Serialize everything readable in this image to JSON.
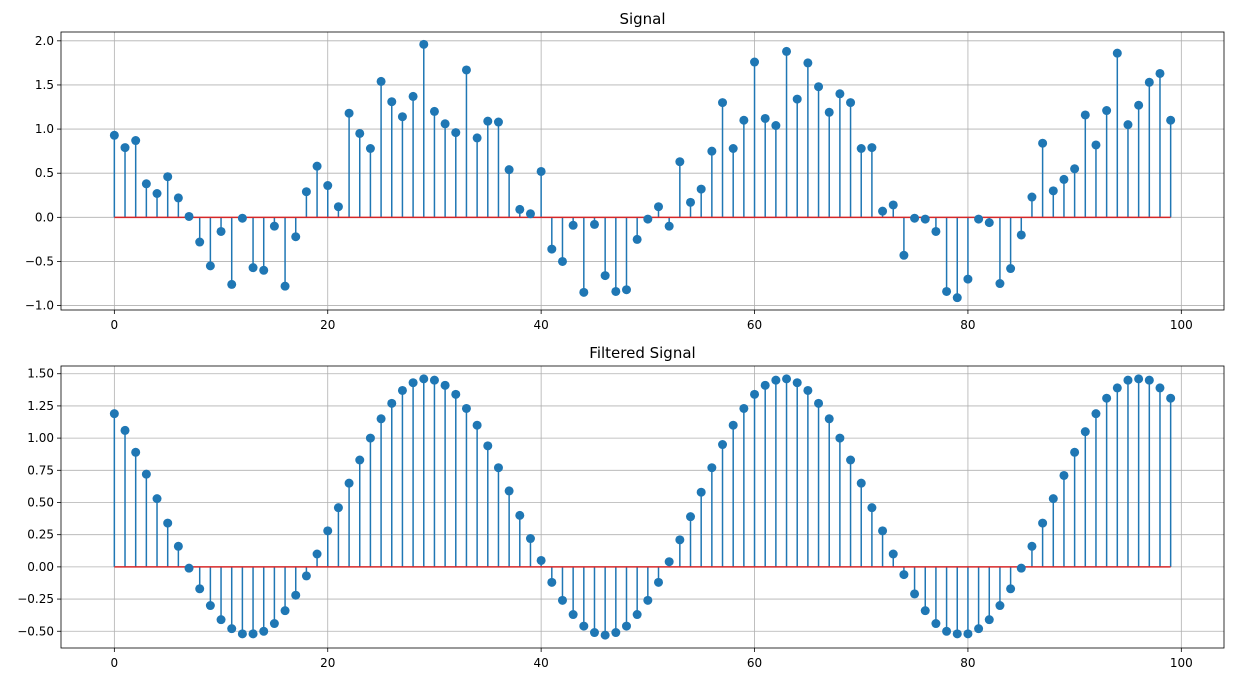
{
  "chart_data": [
    {
      "type": "stem",
      "title": "Signal",
      "xlabel": "",
      "ylabel": "",
      "xlim": [
        -5,
        104
      ],
      "ylim": [
        -1.05,
        2.1
      ],
      "xticks": [
        0,
        20,
        40,
        60,
        80,
        100
      ],
      "yticks": [
        -1.0,
        -0.5,
        0.0,
        0.5,
        1.0,
        1.5,
        2.0
      ],
      "ytick_labels": [
        "−1.0",
        "−0.5",
        "0.0",
        "0.5",
        "1.0",
        "1.5",
        "2.0"
      ],
      "grid": true,
      "baseline": 0,
      "x_start": 0,
      "x_step": 1,
      "values": [
        0.93,
        0.79,
        0.87,
        0.38,
        0.27,
        0.46,
        0.22,
        0.01,
        -0.28,
        -0.55,
        -0.16,
        -0.76,
        -0.01,
        -0.57,
        -0.6,
        -0.1,
        -0.78,
        -0.22,
        0.29,
        0.58,
        0.36,
        0.12,
        1.18,
        0.95,
        0.78,
        1.54,
        1.31,
        1.14,
        1.37,
        1.96,
        1.2,
        1.06,
        0.96,
        1.67,
        0.9,
        1.09,
        1.08,
        0.54,
        0.09,
        0.04,
        0.52,
        -0.36,
        -0.5,
        -0.09,
        -0.85,
        -0.08,
        -0.66,
        -0.84,
        -0.82,
        -0.25,
        -0.02,
        0.12,
        -0.1,
        0.63,
        0.17,
        0.32,
        0.75,
        1.3,
        0.78,
        1.1,
        1.76,
        1.12,
        1.04,
        1.88,
        1.34,
        1.75,
        1.48,
        1.19,
        1.4,
        1.3,
        0.78,
        0.79,
        0.07,
        0.14,
        -0.43,
        -0.01,
        -0.02,
        -0.16,
        -0.84,
        -0.91,
        -0.7,
        -0.02,
        -0.06,
        -0.75,
        -0.58,
        -0.2,
        0.23,
        0.84,
        0.3,
        0.43,
        0.55,
        1.16,
        0.82,
        1.21,
        1.86,
        1.05,
        1.27,
        1.53,
        1.63,
        1.1
      ]
    },
    {
      "type": "stem",
      "title": "Filtered Signal",
      "xlabel": "",
      "ylabel": "",
      "xlim": [
        -5,
        104
      ],
      "ylim": [
        -0.63,
        1.56
      ],
      "xticks": [
        0,
        20,
        40,
        60,
        80,
        100
      ],
      "yticks": [
        -0.5,
        -0.25,
        0.0,
        0.25,
        0.5,
        0.75,
        1.0,
        1.25,
        1.5
      ],
      "ytick_labels": [
        "−0.50",
        "−0.25",
        "0.00",
        "0.25",
        "0.50",
        "0.75",
        "1.00",
        "1.25",
        "1.50"
      ],
      "grid": true,
      "baseline": 0,
      "x_start": 0,
      "x_step": 1,
      "values": [
        1.19,
        1.06,
        0.89,
        0.72,
        0.53,
        0.34,
        0.16,
        -0.01,
        -0.17,
        -0.3,
        -0.41,
        -0.48,
        -0.52,
        -0.52,
        -0.5,
        -0.44,
        -0.34,
        -0.22,
        -0.07,
        0.1,
        0.28,
        0.46,
        0.65,
        0.83,
        1.0,
        1.15,
        1.27,
        1.37,
        1.43,
        1.46,
        1.45,
        1.41,
        1.34,
        1.23,
        1.1,
        0.94,
        0.77,
        0.59,
        0.4,
        0.22,
        0.05,
        -0.12,
        -0.26,
        -0.37,
        -0.46,
        -0.51,
        -0.53,
        -0.51,
        -0.46,
        -0.37,
        -0.26,
        -0.12,
        0.04,
        0.21,
        0.39,
        0.58,
        0.77,
        0.95,
        1.1,
        1.23,
        1.34,
        1.41,
        1.45,
        1.46,
        1.43,
        1.37,
        1.27,
        1.15,
        1.0,
        0.83,
        0.65,
        0.46,
        0.28,
        0.1,
        -0.06,
        -0.21,
        -0.34,
        -0.44,
        -0.5,
        -0.52,
        -0.52,
        -0.48,
        -0.41,
        -0.3,
        -0.17,
        -0.01,
        0.16,
        0.34,
        0.53,
        0.71,
        0.89,
        1.05,
        1.19,
        1.31,
        1.39,
        1.45,
        1.46,
        1.45,
        1.39,
        1.31
      ]
    }
  ],
  "colors": {
    "stem": "#1f77b4",
    "marker": "#1f77b4",
    "baseline": "#d62728",
    "grid": "#b0b0b0",
    "axes": "#000000"
  }
}
